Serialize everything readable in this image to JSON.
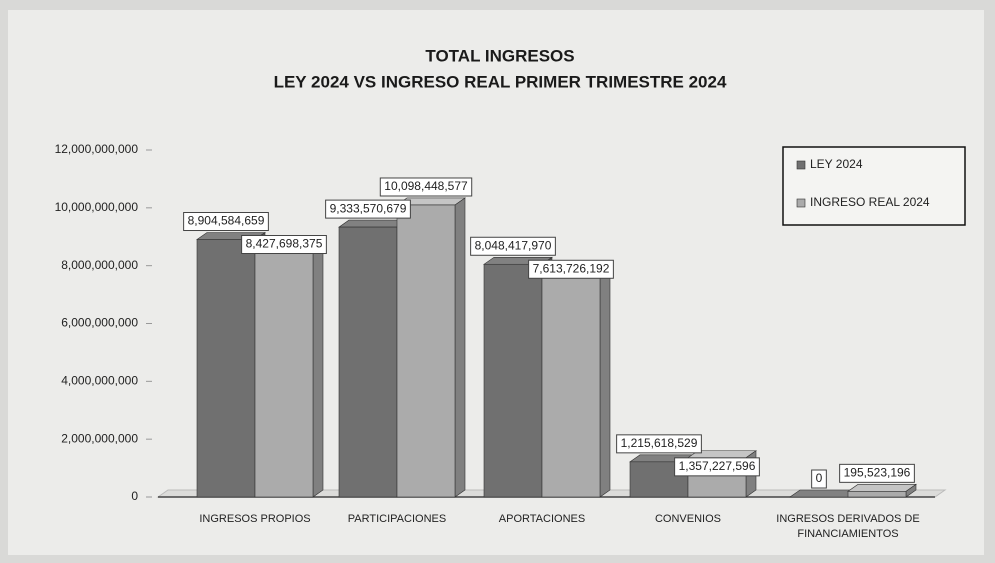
{
  "chart_data": {
    "type": "bar3d",
    "title": "TOTAL INGRESOS",
    "subtitle": "LEY 2024 VS INGRESO REAL PRIMER TRIMESTRE 2024",
    "categories": [
      "INGRESOS PROPIOS",
      "PARTICIPACIONES",
      "APORTACIONES",
      "CONVENIOS",
      "INGRESOS DERIVADOS DE FINANCIAMIENTOS"
    ],
    "series": [
      {
        "name": "LEY 2024",
        "color": "#707070",
        "values": [
          8904584659,
          9333570679,
          8048417970,
          1215618529,
          0
        ],
        "value_labels": [
          "8,904,584,659",
          "9,333,570,679",
          "8,048,417,970",
          "1,215,618,529",
          "0"
        ]
      },
      {
        "name": "INGRESO REAL 2024",
        "color": "#ababab",
        "values": [
          8427698375,
          10098448577,
          7613726192,
          1357227596,
          195523196
        ],
        "value_labels": [
          "8,427,698,375",
          "10,098,448,577",
          "7,613,726,192",
          "1,357,227,596",
          "195,523,196"
        ]
      }
    ],
    "ylim": [
      0,
      12000000000
    ],
    "yticks": [
      0,
      {
        "value": 2000000000,
        "label": "2,000,000,000"
      },
      {
        "value": 4000000000,
        "label": "4,000,000,000"
      },
      {
        "value": 6000000000,
        "label": "6,000,000,000"
      },
      {
        "value": 8000000000,
        "label": "8,000,000,000"
      },
      {
        "value": 10000000000,
        "label": "10,000,000,000"
      },
      {
        "value": 12000000000,
        "label": "12,000,000,000"
      }
    ],
    "legend": "top-right"
  }
}
